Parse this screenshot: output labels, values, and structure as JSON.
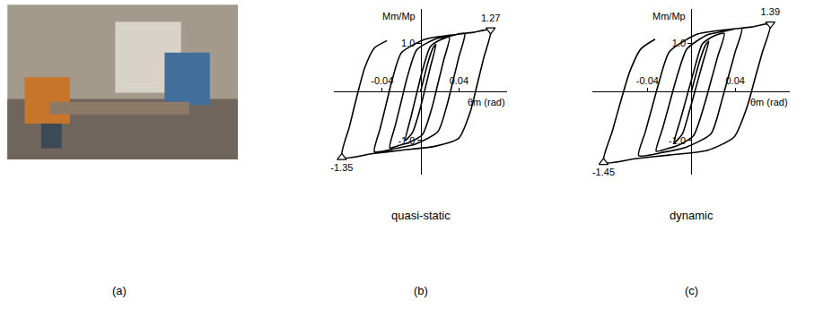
{
  "photo": {
    "panel": "(a)"
  },
  "chart_data": [
    {
      "type": "line",
      "title": "quasi-static",
      "panel": "(b)",
      "x_label": "θm (rad)",
      "y_label": "Mm/Mp",
      "color": "#000000",
      "grid": false,
      "xlim": [
        -0.09,
        0.09
      ],
      "xticks": [
        -0.04,
        0.04
      ],
      "ylim": [
        -1.7,
        1.7
      ],
      "yticks": [
        {
          "value": 1,
          "label": "1.0"
        },
        {
          "value": -1,
          "label": "-1.0"
        }
      ],
      "x": [
        0,
        0.008,
        0.013,
        0.016,
        0.01,
        0.004,
        -0.002,
        -0.008,
        -0.013,
        -0.016,
        -0.01,
        -0.004,
        0.002,
        0.01,
        0.02,
        0.03,
        0.024,
        0.018,
        0.012,
        0.002,
        -0.012,
        -0.022,
        -0.032,
        -0.026,
        -0.02,
        -0.014,
        -0.004,
        0.015,
        0.032,
        0.046,
        0.04,
        0.034,
        0.028,
        0.018,
        -0.005,
        -0.025,
        -0.048,
        -0.042,
        -0.036,
        -0.03,
        -0.02,
        0.005,
        0.03,
        0.055,
        0.073,
        0.066,
        0.059,
        0.052,
        0.04,
        0.015,
        -0.02,
        -0.05,
        -0.082,
        -0.074,
        -0.066,
        -0.058,
        -0.048,
        -0.035
      ],
      "values": [
        0,
        0.62,
        0.9,
        0.97,
        0.49,
        0.0,
        -0.46,
        -0.82,
        -0.95,
        -1.0,
        -0.52,
        -0.03,
        0.44,
        0.92,
        1.06,
        1.12,
        0.64,
        0.16,
        -0.32,
        -0.88,
        -1.04,
        -1.1,
        -1.15,
        -0.67,
        -0.19,
        0.29,
        0.86,
        1.08,
        1.15,
        1.2,
        0.72,
        0.24,
        -0.24,
        -0.82,
        -1.07,
        -1.16,
        -1.23,
        -0.75,
        -0.27,
        0.21,
        0.8,
        1.08,
        1.16,
        1.22,
        1.27,
        0.71,
        0.15,
        -0.4,
        -0.95,
        -1.12,
        -1.2,
        -1.27,
        -1.35,
        -0.71,
        -0.07,
        0.5,
        0.9,
        1.05
      ],
      "peaks": {
        "x": [
          0.073,
          -0.082
        ],
        "values": [
          1.27,
          -1.35
        ],
        "marker": "triangle",
        "data_labels": true
      }
    },
    {
      "type": "line",
      "title": "dynamic",
      "panel": "(c)",
      "x_label": "θm (rad)",
      "y_label": "Mm/Mp",
      "color": "#000000",
      "grid": false,
      "xlim": [
        -0.09,
        0.09
      ],
      "xticks": [
        -0.04,
        0.04
      ],
      "ylim": [
        -1.7,
        1.7
      ],
      "yticks": [
        {
          "value": 1,
          "label": "1.0"
        },
        {
          "value": -1,
          "label": "-1.0"
        }
      ],
      "x": [
        0,
        0.008,
        0.013,
        0.016,
        0.01,
        0.004,
        -0.002,
        -0.008,
        -0.013,
        -0.016,
        -0.01,
        -0.004,
        0.002,
        0.01,
        0.02,
        0.03,
        0.024,
        0.018,
        0.012,
        0.002,
        -0.012,
        -0.022,
        -0.032,
        -0.026,
        -0.02,
        -0.014,
        -0.004,
        0.015,
        0.032,
        0.046,
        0.04,
        0.034,
        0.028,
        0.018,
        -0.005,
        -0.025,
        -0.048,
        -0.042,
        -0.036,
        -0.03,
        -0.02,
        0.005,
        0.03,
        0.055,
        0.072,
        0.065,
        0.058,
        0.051,
        0.039,
        0.015,
        -0.02,
        -0.05,
        -0.08,
        -0.072,
        -0.064,
        -0.056,
        -0.046,
        -0.033
      ],
      "values": [
        0,
        0.66,
        0.96,
        1.04,
        0.56,
        0.07,
        -0.42,
        -0.86,
        -1.0,
        -1.06,
        -0.58,
        -0.09,
        0.4,
        0.98,
        1.14,
        1.2,
        0.72,
        0.23,
        -0.26,
        -0.9,
        -1.1,
        -1.17,
        -1.22,
        -0.74,
        -0.25,
        0.24,
        0.88,
        1.17,
        1.25,
        1.3,
        0.82,
        0.33,
        -0.16,
        -0.86,
        -1.14,
        -1.24,
        -1.31,
        -0.83,
        -0.34,
        0.15,
        0.82,
        1.18,
        1.27,
        1.33,
        1.39,
        0.83,
        0.27,
        -0.3,
        -0.93,
        -1.2,
        -1.3,
        -1.37,
        -1.45,
        -0.81,
        -0.17,
        0.42,
        0.88,
        1.08
      ],
      "peaks": {
        "x": [
          0.072,
          -0.08
        ],
        "values": [
          1.39,
          -1.45
        ],
        "marker": "triangle",
        "data_labels": true
      }
    }
  ]
}
